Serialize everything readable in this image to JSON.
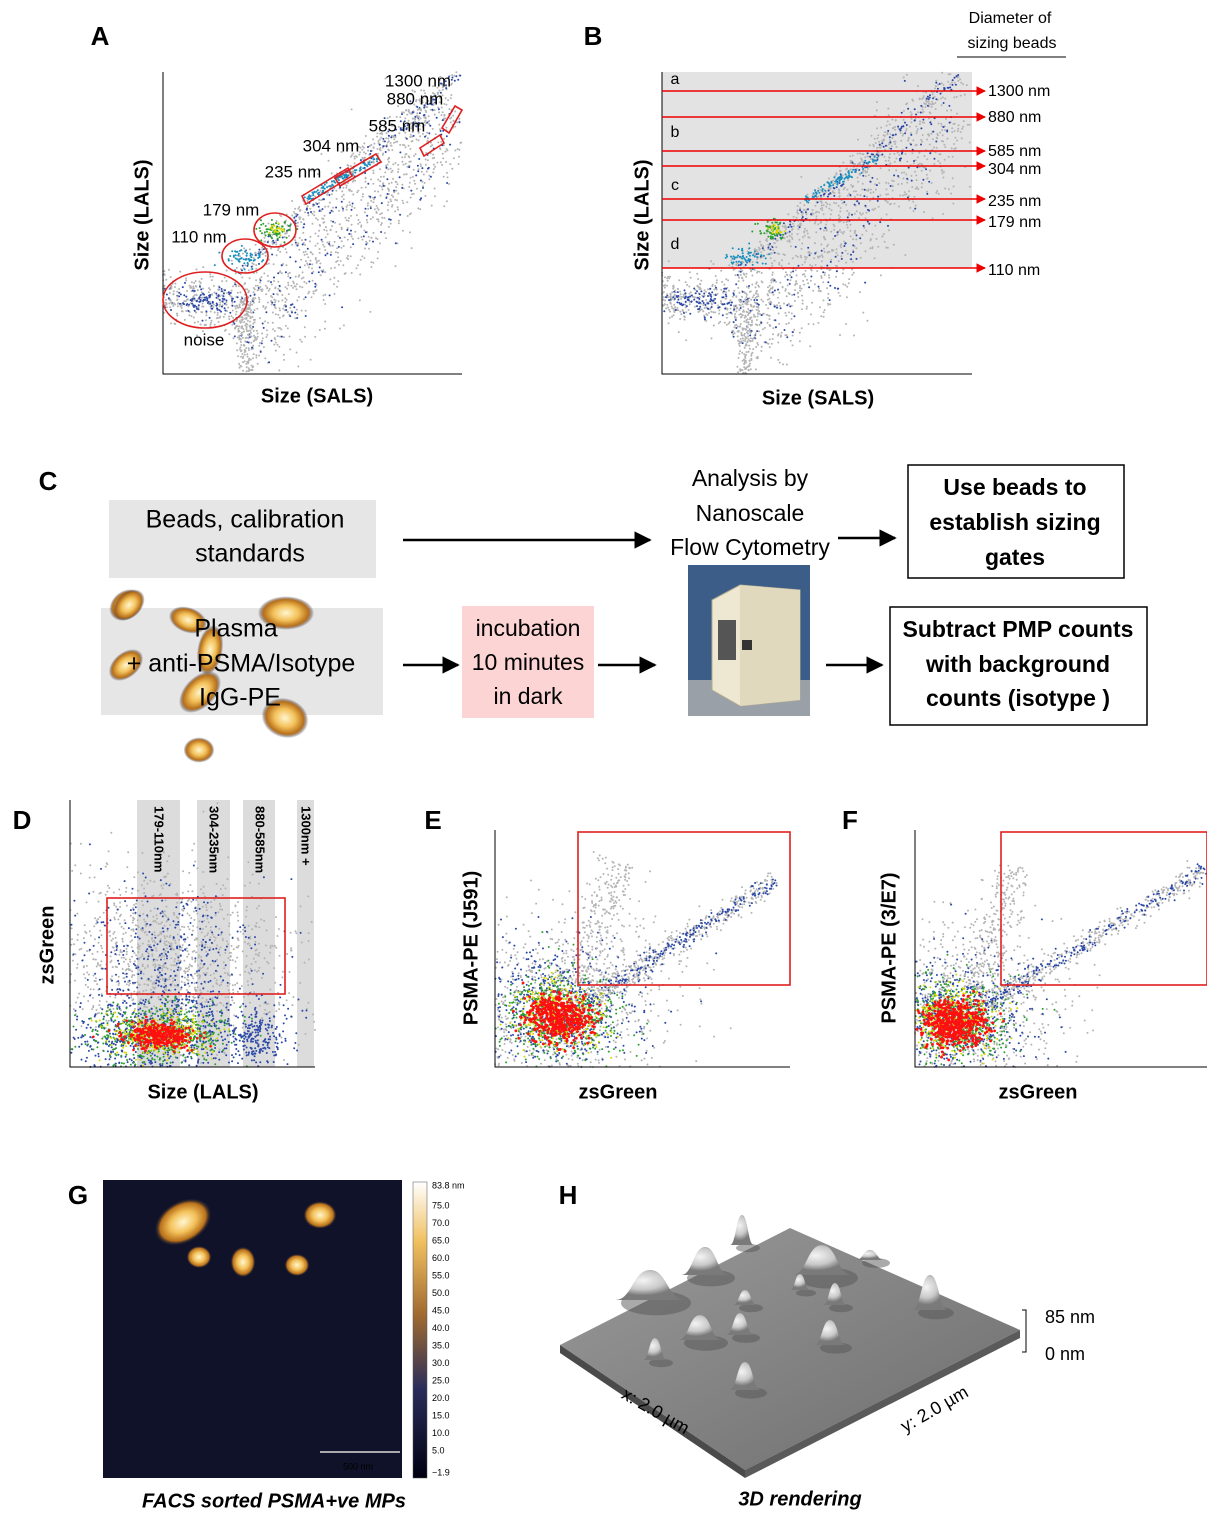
{
  "panels": {
    "A": {
      "label": "A",
      "y_axis": "Size (LALS)",
      "x_axis": "Size (SALS)",
      "annotations": [
        "1300 nm",
        "880 nm",
        "585 nm",
        "304 nm",
        "235 nm",
        "179 nm",
        "110 nm",
        "noise"
      ]
    },
    "B": {
      "label": "B",
      "legend_title": [
        "Diameter of",
        "sizing beads"
      ],
      "regions": [
        "a",
        "b",
        "c",
        "d"
      ],
      "gates": [
        "1300 nm",
        "880 nm",
        "585 nm",
        "304 nm",
        "235 nm",
        "179 nm",
        "110 nm"
      ],
      "y_axis": "Size (LALS)",
      "x_axis": "Size (SALS)"
    },
    "C": {
      "label": "C",
      "inputs": [
        [
          "Beads, calibration",
          "standards"
        ],
        [
          "Plasma",
          "+ anti-PSMA/Isotype",
          "IgG-PE"
        ]
      ],
      "incubation": [
        "incubation",
        "10 minutes",
        "in dark"
      ],
      "analysis": [
        "Analysis by",
        "Nanoscale",
        "Flow Cytometry"
      ],
      "outputs": [
        [
          "Use beads to",
          "establish sizing",
          "gates"
        ],
        [
          "Subtract PMP counts",
          "with background",
          "counts (isotype )"
        ]
      ]
    },
    "D": {
      "label": "D",
      "gates": [
        "179-110nm",
        "304-235nm",
        "880-585nm",
        "1300nm +"
      ],
      "y_axis": "zsGreen",
      "x_axis": "Size (LALS)"
    },
    "E": {
      "label": "E",
      "y_axis": "PSMA-PE (J591)",
      "x_axis": "zsGreen"
    },
    "F": {
      "label": "F",
      "y_axis": "PSMA-PE (3/E7)",
      "x_axis": "zsGreen"
    },
    "G": {
      "label": "G",
      "colorbar": [
        "83.8 nm",
        "75.0",
        "70.0",
        "65.0",
        "60.0",
        "55.0",
        "50.0",
        "45.0",
        "40.0",
        "35.0",
        "30.0",
        "25.0",
        "20.0",
        "15.0",
        "10.0",
        "5.0",
        "−1.9"
      ],
      "scale_bar": "500 nm",
      "caption": "FACS sorted PSMA+ve MPs"
    },
    "H": {
      "label": "H",
      "z_scale": [
        "85 nm",
        "0 nm"
      ],
      "x_axis": "x: 2.0 µm",
      "y_axis": "y: 2.0 µm",
      "caption": "3D rendering"
    }
  }
}
